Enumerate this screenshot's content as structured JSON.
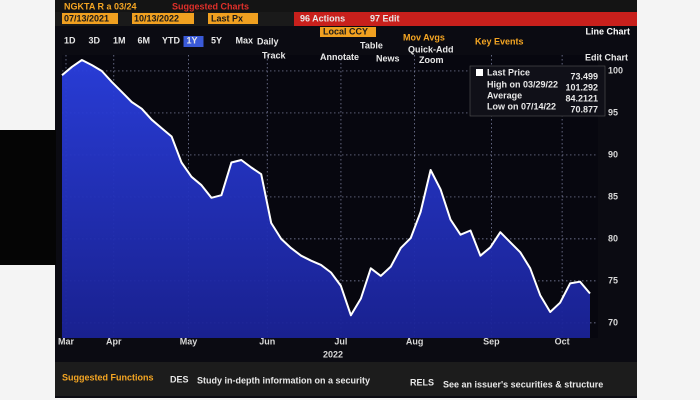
{
  "toolbar": {
    "security": "NGKTA R a 03/24",
    "suggested_charts": "Suggested Charts",
    "start_date": "07/13/2021",
    "end_date": "10/13/2022",
    "price_field": "Last Px",
    "currency": "Local CCY",
    "actions": "96 Actions",
    "edit": "97 Edit",
    "chart_type": "Line Chart",
    "periods": [
      "1D",
      "3D",
      "1M",
      "6M",
      "YTD",
      "1Y",
      "5Y",
      "Max"
    ],
    "frequency": "Daily",
    "table": "Table",
    "mov_avgs": "Mov Avgs",
    "key_events": "Key Events",
    "quick_add": "Quick-Add",
    "edit_chart": "Edit Chart",
    "tools": [
      "Track",
      "Annotate",
      "News",
      "Zoom"
    ]
  },
  "chart_data": {
    "type": "area",
    "x_label": "2022",
    "series": [
      {
        "name": "Last Price",
        "color": "#ffffff",
        "fill": "#2233c4",
        "values": [
          99.5,
          100.5,
          101.3,
          100.7,
          100.0,
          98.7,
          97.5,
          96.3,
          95.5,
          94.2,
          93.2,
          92.2,
          89.1,
          87.4,
          86.4,
          84.9,
          85.2,
          89.1,
          89.4,
          88.5,
          87.7,
          81.9,
          80.0,
          78.9,
          78.0,
          77.4,
          76.9,
          76.0,
          74.4,
          70.9,
          72.9,
          76.5,
          75.6,
          76.7,
          78.9,
          80.1,
          83.2,
          88.2,
          85.9,
          82.3,
          80.5,
          81.0,
          78.0,
          79.0,
          80.8,
          79.6,
          78.4,
          76.5,
          73.3,
          71.3,
          72.4,
          74.7,
          74.9,
          73.5
        ]
      }
    ],
    "xlim": [
      0,
      53
    ],
    "xticks": [
      {
        "value": 0.4,
        "label": "Mar"
      },
      {
        "value": 5.2,
        "label": "Apr"
      },
      {
        "value": 12.7,
        "label": "May"
      },
      {
        "value": 20.6,
        "label": "Jun"
      },
      {
        "value": 28.0,
        "label": "Jul"
      },
      {
        "value": 35.4,
        "label": "Aug"
      },
      {
        "value": 43.1,
        "label": "Sep"
      },
      {
        "value": 50.2,
        "label": "Oct"
      }
    ],
    "ylim": [
      68.2,
      101.9
    ],
    "yticks": [
      70,
      75,
      80,
      85,
      90,
      95,
      100
    ],
    "grid": true
  },
  "stats": {
    "last_price": 73.499,
    "high_label": "High on 03/29/22",
    "high": 101.292,
    "average_label": "Average",
    "average": 84.2121,
    "low_label": "Low on 07/14/22",
    "low": 70.877
  },
  "footer": {
    "suggested_functions": "Suggested Functions",
    "items": [
      {
        "code": "DES",
        "text": "Study in-depth information on a security"
      },
      {
        "code": "RELS",
        "text": "See an issuer's securities & structure"
      }
    ]
  }
}
